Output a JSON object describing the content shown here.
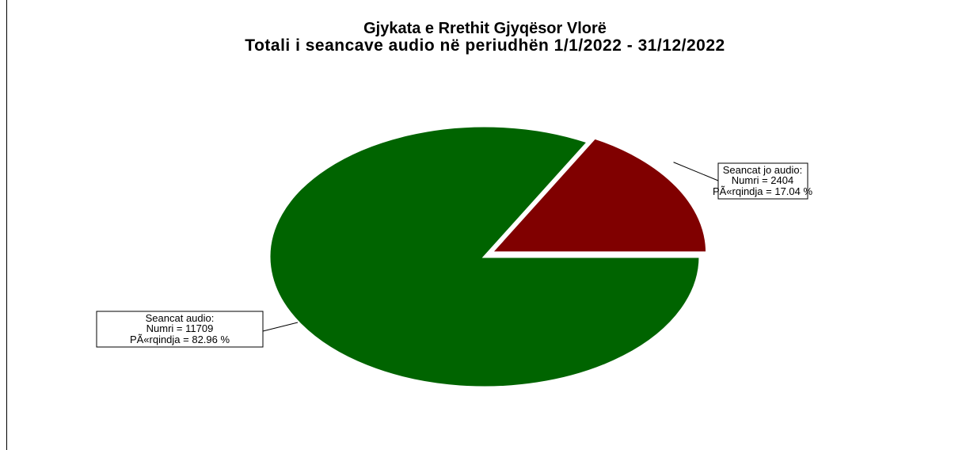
{
  "chart_data": {
    "type": "pie",
    "title": "Gjykata e Rrethit Gjyqësor Vlorë",
    "subtitle": "Totali i seancave audio në periudhën 1/1/2022 - 31/12/2022",
    "slices": [
      {
        "name": "Seancat audio",
        "value": 11709,
        "percent": 82.96,
        "color": "#006400",
        "label_lines": [
          "Seancat audio:",
          "Numri = 11709",
          "PÃ«rqindja = 82.96 %"
        ]
      },
      {
        "name": "Seancat jo audio",
        "value": 2404,
        "percent": 17.04,
        "color": "#800000",
        "label_lines": [
          "Seancat jo audio:",
          "Numri = 2404",
          "PÃ«rqindja = 17.04 %"
        ]
      }
    ],
    "exploded": "Seancat jo audio"
  }
}
